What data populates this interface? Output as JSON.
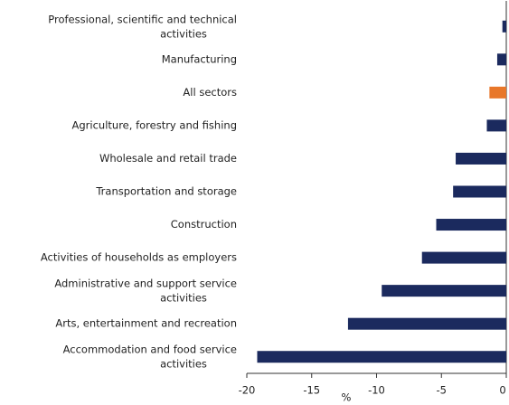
{
  "chart_data": {
    "type": "barh",
    "categories": [
      "Professional, scientific and technical activities",
      "Manufacturing",
      "All sectors",
      "Agriculture, forestry and fishing",
      "Wholesale and retail trade",
      "Transportation and storage",
      "Construction",
      "Activities of households as employers",
      "Administrative and support service activities",
      "Arts, entertainment and recreation",
      "Accommodation and food service activities"
    ],
    "values": [
      -0.3,
      -0.7,
      -1.3,
      -1.5,
      -3.9,
      -4.1,
      -5.4,
      -6.5,
      -9.6,
      -12.2,
      -19.2
    ],
    "colors": [
      "#1b2a5e",
      "#1b2a5e",
      "#e8772a",
      "#1b2a5e",
      "#1b2a5e",
      "#1b2a5e",
      "#1b2a5e",
      "#1b2a5e",
      "#1b2a5e",
      "#1b2a5e",
      "#1b2a5e"
    ],
    "xlabel": "%",
    "xlim": [
      -20,
      0
    ],
    "xticks": [
      -20,
      -15,
      -10,
      -5,
      0
    ]
  }
}
